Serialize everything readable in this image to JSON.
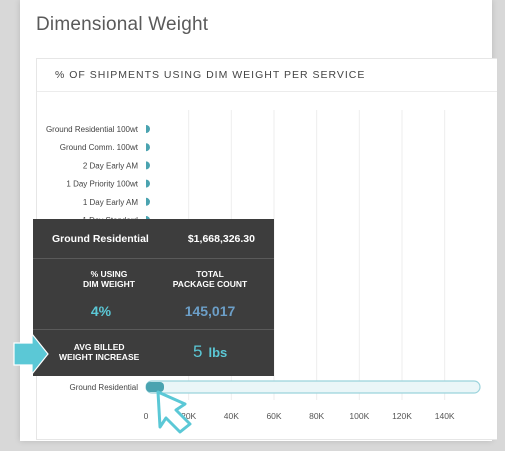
{
  "page": {
    "title": "Dimensional Weight"
  },
  "card": {
    "title": "% OF SHIPMENTS USING DIM WEIGHT PER SERVICE"
  },
  "chart_data": {
    "type": "bar",
    "orientation": "horizontal",
    "categories": [
      "Ground Residential 100wt",
      "Ground Comm. 100wt",
      "2 Day Early AM",
      "1 Day Priority 100wt",
      "1 Day Early AM",
      "1 Day Standard",
      "",
      "",
      "",
      "",
      "",
      "",
      "Ground Residential"
    ],
    "values": [
      300,
      300,
      300,
      300,
      300,
      300,
      300,
      300,
      300,
      300,
      300,
      300,
      145017
    ],
    "highlighted_category": "Ground Residential",
    "xlim": [
      0,
      150000
    ],
    "xticks": [
      "0",
      "20K",
      "40K",
      "60K",
      "80K",
      "100K",
      "120K",
      "140K"
    ],
    "grid": true,
    "colors": {
      "bar": "#4aa3b0",
      "highlight_outline": "#9bd3dc",
      "highlight_fill": "#eaf6f8"
    }
  },
  "tooltip": {
    "service": "Ground Residential",
    "amount": "$1,668,326.30",
    "pct_label_line1": "% USING",
    "pct_label_line2": "DIM WEIGHT",
    "pct_value": "4%",
    "count_label_line1": "TOTAL",
    "count_label_line2": "PACKAGE COUNT",
    "count_value": "145,017",
    "avg_label_line1": "AVG BILLED",
    "avg_label_line2": "WEIGHT INCREASE",
    "avg_value": "5",
    "avg_unit": "lbs",
    "colors": {
      "pct": "#5bc8d6",
      "count": "#6c9fc8"
    }
  },
  "annotations": {
    "arrow_color": "#5bc8d6",
    "cursor_color": "#5bc8d6"
  }
}
